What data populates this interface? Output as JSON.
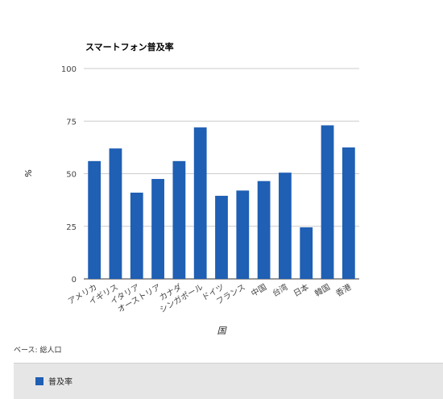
{
  "chart_data": {
    "type": "bar",
    "title": "スマートフォン普及率",
    "ylabel": "%",
    "xlabel": "国",
    "ylim": [
      0,
      100
    ],
    "yticks": [
      0,
      25,
      50,
      75,
      100
    ],
    "grid": true,
    "legend_position": "bottom",
    "categories": [
      "アメリカ",
      "イギリス",
      "イタリア",
      "オーストリア",
      "カナダ",
      "シンガポール",
      "ドイツ",
      "フランス",
      "中国",
      "台湾",
      "日本",
      "韓国",
      "香港"
    ],
    "series": [
      {
        "name": "普及率",
        "color": "#1f5fb4",
        "values": [
          56,
          62,
          41,
          47.5,
          56,
          72,
          39.5,
          42,
          46.5,
          50.5,
          24.5,
          73,
          62.5
        ]
      }
    ]
  },
  "note": "ベース: 総人口"
}
